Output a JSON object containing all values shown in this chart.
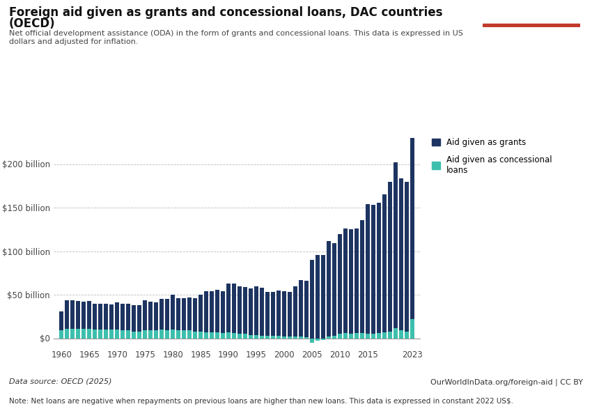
{
  "title_line1": "Foreign aid given as grants and concessional loans, DAC countries",
  "title_line2": "(OECD)",
  "subtitle": "Net official development assistance (ODA) in the form of grants and concessional loans. This data is expressed in US\ndollars and adjusted for inflation.",
  "datasource": "Data source: OECD (2025)",
  "url": "OurWorldInData.org/foreign-aid | CC BY",
  "note": "Note: Net loans are negative when repayments on previous loans are higher than new loans. This data is expressed in constant 2022 US$.",
  "legend_grants": "Aid given as grants",
  "legend_loans": "Aid given as concessional\nloans",
  "color_grants": "#1d3461",
  "color_loans": "#3dbfad",
  "background_color": "#ffffff",
  "years": [
    1960,
    1961,
    1962,
    1963,
    1964,
    1965,
    1966,
    1967,
    1968,
    1969,
    1970,
    1971,
    1972,
    1973,
    1974,
    1975,
    1976,
    1977,
    1978,
    1979,
    1980,
    1981,
    1982,
    1983,
    1984,
    1985,
    1986,
    1987,
    1988,
    1989,
    1990,
    1991,
    1992,
    1993,
    1994,
    1995,
    1996,
    1997,
    1998,
    1999,
    2000,
    2001,
    2002,
    2003,
    2004,
    2005,
    2006,
    2007,
    2008,
    2009,
    2010,
    2011,
    2012,
    2013,
    2014,
    2015,
    2016,
    2017,
    2018,
    2019,
    2020,
    2021,
    2022,
    2023
  ],
  "grants": [
    22,
    33,
    33,
    32,
    31,
    32,
    30,
    30,
    30,
    29,
    31,
    31,
    31,
    30,
    30,
    35,
    33,
    32,
    35,
    36,
    40,
    37,
    37,
    38,
    38,
    42,
    47,
    47,
    49,
    48,
    56,
    57,
    55,
    54,
    53,
    56,
    55,
    50,
    50,
    52,
    52,
    51,
    58,
    65,
    65,
    90,
    96,
    96,
    110,
    106,
    115,
    120,
    120,
    120,
    130,
    149,
    148,
    150,
    158,
    172,
    190,
    175,
    172,
    215
  ],
  "loans": [
    9,
    11,
    11,
    11,
    11,
    11,
    10,
    10,
    10,
    10,
    10,
    9,
    9,
    8,
    8,
    9,
    9,
    9,
    10,
    9,
    10,
    9,
    9,
    9,
    8,
    8,
    7,
    7,
    7,
    6,
    7,
    6,
    5,
    5,
    4,
    4,
    3,
    3,
    3,
    3,
    2,
    2,
    2,
    2,
    1,
    -5,
    -3,
    -2,
    2,
    3,
    5,
    6,
    5,
    6,
    6,
    5,
    5,
    6,
    7,
    8,
    12,
    9,
    8,
    22
  ],
  "ylim": [
    -10,
    230
  ],
  "yticks": [
    0,
    50,
    100,
    150,
    200
  ],
  "ytick_labels": [
    "$0",
    "$50 billion",
    "$100 billion",
    "$150 billion",
    "$200 billion"
  ],
  "xticks": [
    1960,
    1965,
    1970,
    1975,
    1980,
    1985,
    1990,
    1995,
    2000,
    2005,
    2010,
    2015,
    2023
  ],
  "logo_bg": "#1d3461",
  "logo_red": "#c0392b"
}
